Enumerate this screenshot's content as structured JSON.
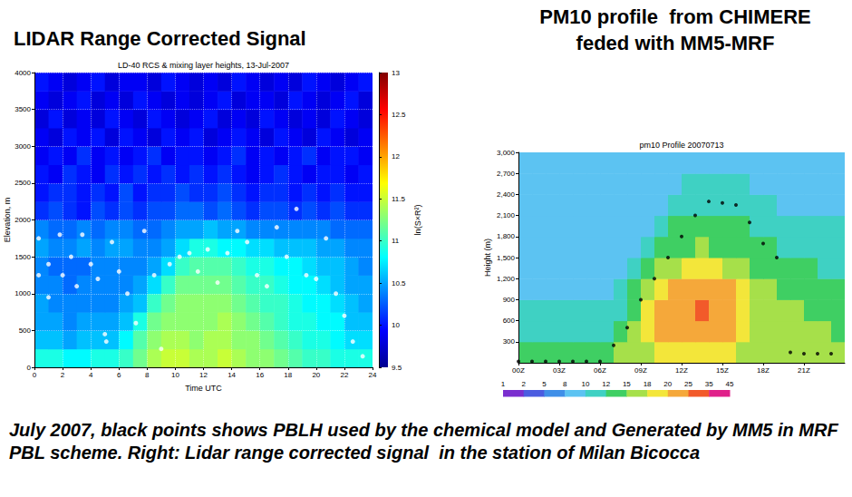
{
  "caption": "July 2007, black points shows PBLH used by the chemical model and Generated by MM5 in MRF PBL scheme. Right: Lidar range corrected signal  in the station of Milan Bicocca",
  "chart_data": [
    {
      "type": "heatmap",
      "title": "LIDAR Range Corrected Signal",
      "subtitle": "LD-40 RCS & mixing layer heights, 13-Jul-2007",
      "xlabel": "Time UTC",
      "ylabel": "Elevation, m",
      "xlim": [
        0,
        24
      ],
      "xticks": [
        0,
        2,
        4,
        6,
        8,
        10,
        12,
        14,
        16,
        18,
        20,
        22,
        24
      ],
      "ylim": [
        0,
        4000
      ],
      "yticks": [
        0,
        500,
        1000,
        1500,
        2000,
        2500,
        3000,
        3500,
        4000
      ],
      "grid": true,
      "x": [
        0,
        1,
        2,
        3,
        4,
        5,
        6,
        7,
        8,
        9,
        10,
        11,
        12,
        13,
        14,
        15,
        16,
        17,
        18,
        19,
        20,
        21,
        22,
        23,
        24
      ],
      "y": [
        0,
        250,
        500,
        750,
        1000,
        1250,
        1500,
        1750,
        2000,
        2250,
        2500,
        2750,
        3000,
        3250,
        3500,
        3750,
        4000
      ],
      "values": [
        [
          10.9,
          10.9,
          10.8,
          10.8,
          10.9,
          10.9,
          11.0,
          11.2,
          11.4,
          11.5,
          11.5,
          11.4,
          11.4,
          11.5,
          11.4,
          11.3,
          11.3,
          11.2,
          11.1,
          11.0,
          11.0,
          10.9,
          10.9,
          10.9
        ],
        [
          10.6,
          10.6,
          10.5,
          10.6,
          10.6,
          10.6,
          10.8,
          11.1,
          11.3,
          11.4,
          11.4,
          11.3,
          11.4,
          11.4,
          11.3,
          11.3,
          11.2,
          11.1,
          11.0,
          10.9,
          10.9,
          10.8,
          10.7,
          10.7
        ],
        [
          10.5,
          10.5,
          10.4,
          10.5,
          10.5,
          10.5,
          10.6,
          10.9,
          11.2,
          11.3,
          11.3,
          11.3,
          11.3,
          11.4,
          11.3,
          11.2,
          11.1,
          11.0,
          10.9,
          10.9,
          10.8,
          10.8,
          10.6,
          10.6
        ],
        [
          10.5,
          10.4,
          10.4,
          10.4,
          10.4,
          10.4,
          10.5,
          10.6,
          11.0,
          11.2,
          11.3,
          11.3,
          11.3,
          11.3,
          11.2,
          11.1,
          11.0,
          11.0,
          10.9,
          10.8,
          10.8,
          10.7,
          10.6,
          10.5
        ],
        [
          10.4,
          10.4,
          10.3,
          10.4,
          10.4,
          10.4,
          10.4,
          10.5,
          10.7,
          11.0,
          11.2,
          11.2,
          11.2,
          11.2,
          11.1,
          11.0,
          11.0,
          10.9,
          10.8,
          10.8,
          10.7,
          10.6,
          10.5,
          10.5
        ],
        [
          10.4,
          10.3,
          10.3,
          10.3,
          10.4,
          10.4,
          10.4,
          10.4,
          10.5,
          10.7,
          11.0,
          11.1,
          11.1,
          11.1,
          11.0,
          10.9,
          10.9,
          10.8,
          10.8,
          10.7,
          10.6,
          10.6,
          10.5,
          10.4
        ],
        [
          10.5,
          10.4,
          10.4,
          10.5,
          10.4,
          10.5,
          10.5,
          10.4,
          10.4,
          10.5,
          10.7,
          10.9,
          10.9,
          10.8,
          10.8,
          10.7,
          10.7,
          10.6,
          10.6,
          10.6,
          10.5,
          10.5,
          10.4,
          10.4
        ],
        [
          10.4,
          10.3,
          10.3,
          10.4,
          10.3,
          10.4,
          10.4,
          10.3,
          10.3,
          10.4,
          10.5,
          10.5,
          10.6,
          10.5,
          10.5,
          10.4,
          10.4,
          10.4,
          10.4,
          10.4,
          10.4,
          10.3,
          10.3,
          10.3
        ],
        [
          10.1,
          10.2,
          10.1,
          10.0,
          10.2,
          10.1,
          10.2,
          10.1,
          10.2,
          10.2,
          10.3,
          10.3,
          10.2,
          10.3,
          10.2,
          10.1,
          10.2,
          10.2,
          10.1,
          10.2,
          10.1,
          10.2,
          10.1,
          10.1
        ],
        [
          10.0,
          10.1,
          10.1,
          10.0,
          10.1,
          10.0,
          10.2,
          10.0,
          10.1,
          10.1,
          10.2,
          10.1,
          10.1,
          10.2,
          10.1,
          10.0,
          10.1,
          10.1,
          10.0,
          10.1,
          10.0,
          10.1,
          10.0,
          10.0
        ],
        [
          10.0,
          9.9,
          10.1,
          10.0,
          9.9,
          10.1,
          10.0,
          10.1,
          10.0,
          10.1,
          10.0,
          10.1,
          10.0,
          10.1,
          10.0,
          9.9,
          10.0,
          10.1,
          10.0,
          9.9,
          10.0,
          10.0,
          9.9,
          10.0
        ],
        [
          9.9,
          10.0,
          9.9,
          10.1,
          9.9,
          10.0,
          9.9,
          10.0,
          10.1,
          9.9,
          10.0,
          10.0,
          9.9,
          10.0,
          10.1,
          9.9,
          10.0,
          9.9,
          10.0,
          10.1,
          9.9,
          10.0,
          10.0,
          9.9
        ],
        [
          9.9,
          9.8,
          10.0,
          9.9,
          10.0,
          9.8,
          10.0,
          9.9,
          9.8,
          10.0,
          9.9,
          10.0,
          9.8,
          9.9,
          10.0,
          9.9,
          9.8,
          10.0,
          9.9,
          9.8,
          10.0,
          9.9,
          9.8,
          9.9
        ],
        [
          9.8,
          10.0,
          9.8,
          9.9,
          9.8,
          10.0,
          9.9,
          9.8,
          10.0,
          9.9,
          9.8,
          9.9,
          10.0,
          9.8,
          9.9,
          9.8,
          10.0,
          9.9,
          9.8,
          9.9,
          9.8,
          10.0,
          9.9,
          9.8
        ],
        [
          9.9,
          9.8,
          9.9,
          10.0,
          9.8,
          9.9,
          9.8,
          10.0,
          9.9,
          9.8,
          9.9,
          9.8,
          9.9,
          10.0,
          9.8,
          9.9,
          9.9,
          9.8,
          10.0,
          9.9,
          9.8,
          9.9,
          10.0,
          9.8
        ],
        [
          10.0,
          9.9,
          9.8,
          9.9,
          10.0,
          9.8,
          9.9,
          9.9,
          9.8,
          10.0,
          9.9,
          9.8,
          9.9,
          9.8,
          10.0,
          9.9,
          9.8,
          9.9,
          9.8,
          10.0,
          9.9,
          9.8,
          9.9,
          10.0
        ]
      ],
      "colorbar": {
        "label": "ln(S×R²)",
        "lim": [
          9.5,
          13
        ],
        "ticks": [
          9.5,
          10,
          10.5,
          11,
          11.5,
          12,
          12.5,
          13
        ]
      },
      "series": [
        {
          "type": "scatter",
          "color": "#ffffff",
          "marker": "circle",
          "x": [
            0.3,
            0.3,
            1.0,
            1.0,
            1.8,
            2.0,
            2.6,
            3.0,
            3.4,
            4.0,
            4.5,
            5.0,
            5.1,
            5.5,
            6.0,
            6.6,
            7.2,
            7.8,
            8.5,
            9.0,
            9.6,
            10.3,
            11.0,
            11.6,
            12.3,
            13.0,
            13.7,
            14.4,
            15.1,
            15.8,
            16.5,
            17.2,
            17.9,
            18.6,
            19.3,
            20.0,
            20.7,
            21.4,
            22.0,
            22.6,
            23.3
          ],
          "values": [
            1750,
            1250,
            1400,
            950,
            1800,
            1250,
            1500,
            1100,
            1800,
            1400,
            1200,
            450,
            350,
            1700,
            1300,
            1000,
            600,
            1850,
            1250,
            250,
            1400,
            1500,
            1550,
            1300,
            1600,
            1150,
            1550,
            1850,
            1700,
            1250,
            1100,
            1900,
            1500,
            2150,
            1250,
            1200,
            1750,
            1000,
            700,
            350,
            150
          ]
        }
      ]
    },
    {
      "type": "heatmap",
      "title": "PM10 profile  from CHIMERE feded with MM5-MRF",
      "subtitle": "pm10 Profile 20070713",
      "ylabel": "Height (m)",
      "xlim": [
        0,
        24
      ],
      "xticks": [
        {
          "value": 0,
          "label": "00Z"
        },
        {
          "value": 3,
          "label": "03Z"
        },
        {
          "value": 6,
          "label": "06Z"
        },
        {
          "value": 9,
          "label": "09Z"
        },
        {
          "value": 12,
          "label": "12Z"
        },
        {
          "value": 15,
          "label": "15Z"
        },
        {
          "value": 18,
          "label": "18Z"
        },
        {
          "value": 21,
          "label": "21Z"
        }
      ],
      "ylim": [
        0,
        3000
      ],
      "yticks": [
        300,
        600,
        900,
        {
          "value": 1200,
          "label": "1,200"
        },
        {
          "value": 1500,
          "label": "1,500"
        },
        {
          "value": 1800,
          "label": "1,800"
        },
        {
          "value": 2100,
          "label": "2,100"
        },
        {
          "value": 2400,
          "label": "2,400"
        },
        {
          "value": 2700,
          "label": "2,700"
        },
        {
          "value": 3000,
          "label": "3,000"
        }
      ],
      "grid": false,
      "x": [
        0,
        1,
        2,
        3,
        4,
        5,
        6,
        7,
        8,
        9,
        10,
        11,
        12,
        13,
        14,
        15,
        16,
        17,
        18,
        19,
        20,
        21,
        22,
        23,
        24
      ],
      "y": [
        0,
        300,
        600,
        900,
        1200,
        1500,
        1800,
        2100,
        2400,
        2700,
        3000
      ],
      "values": [
        [
          14,
          14,
          14,
          13,
          13,
          13,
          14,
          15,
          16,
          17,
          18,
          19,
          19,
          19,
          19,
          18,
          17,
          16,
          16,
          16,
          16,
          15,
          15,
          15
        ],
        [
          11,
          11,
          11,
          11,
          11,
          11,
          11,
          13,
          16,
          18,
          20,
          21,
          22,
          23,
          22,
          21,
          19,
          17,
          16,
          16,
          15,
          15,
          15,
          14
        ],
        [
          10,
          10,
          10,
          10,
          10,
          10,
          10,
          11,
          14,
          18,
          21,
          23,
          24,
          27,
          24,
          22,
          19,
          17,
          16,
          15,
          15,
          14,
          14,
          14
        ],
        [
          9,
          9,
          9,
          9,
          9,
          9,
          9,
          10,
          12,
          15,
          19,
          21,
          22,
          23,
          22,
          20,
          18,
          16,
          15,
          14,
          14,
          13,
          13,
          13
        ],
        [
          9,
          9,
          9,
          9,
          9,
          9,
          9,
          9,
          10,
          13,
          15,
          17,
          18,
          19,
          18,
          17,
          16,
          14,
          13,
          12,
          12,
          12,
          11,
          11
        ],
        [
          9,
          9,
          9,
          9,
          9,
          9,
          9,
          9,
          9,
          11,
          12,
          13,
          14,
          15,
          14,
          14,
          13,
          13,
          12,
          11,
          11,
          10,
          10,
          10
        ],
        [
          9,
          9,
          9,
          9,
          9,
          9,
          9,
          9,
          9,
          9,
          11,
          12,
          12,
          13,
          13,
          12,
          12,
          11,
          11,
          10,
          10,
          10,
          10,
          10
        ],
        [
          9,
          9,
          9,
          9,
          9,
          9,
          9,
          9,
          9,
          9,
          9,
          10,
          11,
          11,
          11,
          11,
          10,
          10,
          10,
          9,
          9,
          9,
          9,
          9
        ],
        [
          9,
          9,
          9,
          9,
          9,
          9,
          9,
          9,
          9,
          9,
          9,
          9,
          10,
          10,
          10,
          10,
          10,
          9,
          9,
          9,
          9,
          9,
          9,
          9
        ],
        [
          9,
          9,
          9,
          9,
          9,
          9,
          9,
          9,
          9,
          9,
          9,
          9,
          9,
          9,
          9,
          9,
          9,
          9,
          9,
          9,
          9,
          9,
          9,
          9
        ]
      ],
      "colorbar": {
        "levels": [
          1,
          2,
          5,
          8,
          10,
          12,
          15,
          18,
          20,
          25,
          35,
          45
        ]
      },
      "series": [
        {
          "type": "scatter",
          "color": "#000000",
          "marker": "circle",
          "x": [
            0,
            1,
            2,
            3,
            4,
            5,
            6,
            7,
            8,
            9,
            10,
            11,
            12,
            13,
            14,
            15,
            16,
            17,
            18,
            19,
            20,
            21,
            22,
            23
          ],
          "values": [
            20,
            20,
            20,
            20,
            20,
            20,
            20,
            250,
            500,
            900,
            1200,
            1500,
            1800,
            2100,
            2300,
            2280,
            2250,
            2000,
            1700,
            1500,
            150,
            130,
            130,
            130
          ]
        }
      ]
    }
  ]
}
